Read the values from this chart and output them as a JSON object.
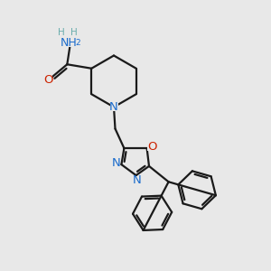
{
  "background_color": "#e8e8e8",
  "bond_color": "#1a1a1a",
  "bond_width": 1.6,
  "atom_colors": {
    "N": "#1a6bcc",
    "O": "#cc2200",
    "C": "#1a1a1a",
    "H": "#6aadad"
  },
  "figsize": [
    3.0,
    3.0
  ],
  "dpi": 100,
  "scale": 1.0
}
